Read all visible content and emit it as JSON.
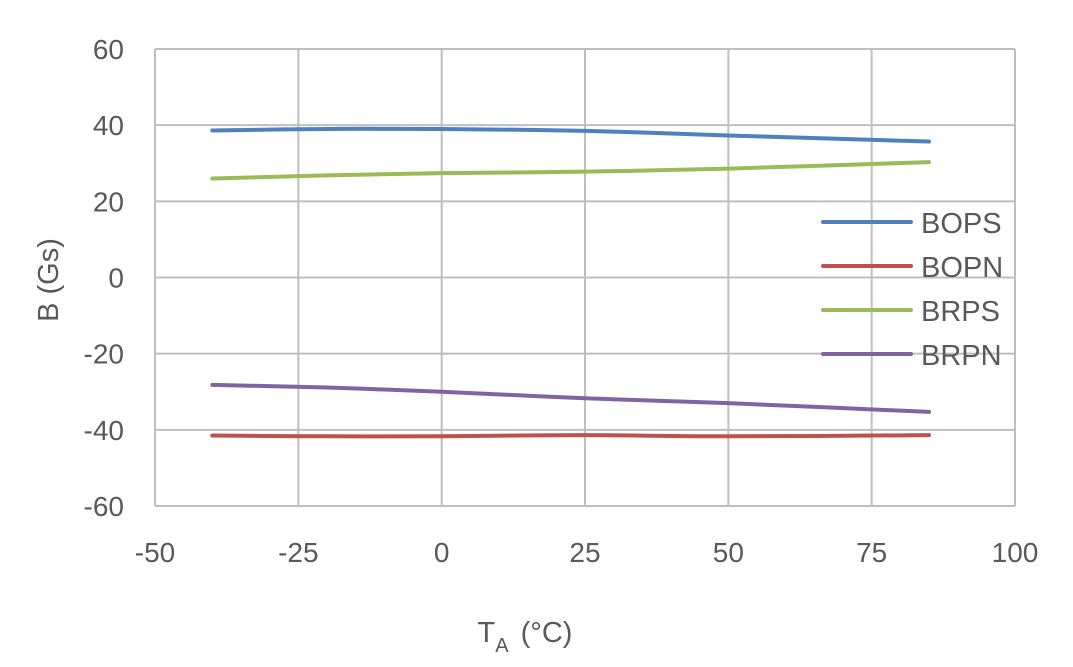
{
  "chart_data": {
    "type": "line",
    "title": "",
    "xlabel_main": "T",
    "xlabel_sub": "A",
    "xlabel_unit": "(°C)",
    "ylabel": "B (Gs)",
    "xlim": [
      -50,
      100
    ],
    "ylim": [
      -60,
      60
    ],
    "xticks": [
      -50,
      -25,
      0,
      25,
      50,
      75,
      100
    ],
    "yticks": [
      -60,
      -40,
      -20,
      0,
      20,
      40,
      60
    ],
    "xtick_labels": [
      "-50",
      "-25",
      "0",
      "25",
      "50",
      "75",
      "100"
    ],
    "ytick_labels": [
      "-60",
      "-40",
      "-20",
      "0",
      "20",
      "40",
      "60"
    ],
    "grid": true,
    "legend_position": "right",
    "x": [
      -40,
      -20,
      0,
      25,
      50,
      85
    ],
    "series": [
      {
        "name": "BOPS",
        "color": "#4f81bd",
        "values": [
          38.6,
          39.0,
          39.0,
          38.5,
          37.3,
          35.7
        ]
      },
      {
        "name": "BOPN",
        "color": "#c0504d",
        "values": [
          -41.5,
          -41.7,
          -41.7,
          -41.4,
          -41.7,
          -41.4
        ]
      },
      {
        "name": "BRPS",
        "color": "#9bbb59",
        "values": [
          26.0,
          26.8,
          27.4,
          27.8,
          28.6,
          30.3
        ]
      },
      {
        "name": "BRPN",
        "color": "#8064a2",
        "values": [
          -28.2,
          -28.9,
          -30.0,
          -31.7,
          -33.0,
          -35.3
        ]
      }
    ]
  }
}
